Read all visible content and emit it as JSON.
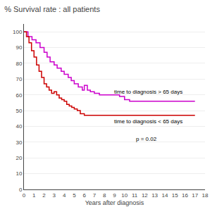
{
  "chart_data": {
    "type": "step",
    "title": "% Survival rate : all patients",
    "x_label": "Years after diagnosis",
    "xlim": [
      0,
      18
    ],
    "ylim": [
      0,
      105
    ],
    "xticks": [
      0,
      1,
      2,
      3,
      4,
      5,
      6,
      7,
      8,
      9,
      10,
      11,
      12,
      13,
      14,
      15,
      16,
      17,
      18
    ],
    "yticks": [
      0,
      10,
      20,
      30,
      40,
      50,
      60,
      70,
      80,
      90,
      100
    ],
    "grid": "y",
    "series": [
      {
        "color": "#cc00cc",
        "x": [
          0,
          0.4,
          0.8,
          1.2,
          1.6,
          2.0,
          2.3,
          2.6,
          3.0,
          3.3,
          3.7,
          4.0,
          4.4,
          4.7,
          5.0,
          5.4,
          5.8,
          6.0,
          6.3,
          6.6,
          7.0,
          7.5,
          8.5,
          9.5,
          10.0,
          10.5,
          11.0,
          17.0
        ],
        "values": [
          100,
          97,
          95,
          93,
          90,
          87,
          84,
          81,
          79,
          77,
          75,
          73,
          71,
          69,
          67,
          65,
          63,
          66,
          63,
          62,
          61,
          60,
          60,
          59,
          57,
          56,
          56,
          56
        ]
      },
      {
        "color": "#cc0000",
        "x": [
          0,
          0.25,
          0.5,
          0.75,
          1.0,
          1.25,
          1.5,
          1.75,
          2.0,
          2.25,
          2.5,
          2.75,
          3.0,
          3.25,
          3.5,
          3.75,
          4.0,
          4.25,
          4.5,
          4.75,
          5.0,
          5.3,
          5.6,
          6.0,
          6.3,
          6.7,
          7.0,
          17.0
        ],
        "values": [
          100,
          97,
          93,
          88,
          84,
          79,
          75,
          71,
          67,
          65,
          63,
          61,
          62,
          60,
          58,
          57,
          56,
          54,
          53,
          52,
          51,
          50,
          48,
          47,
          47,
          47,
          47,
          47
        ]
      }
    ],
    "annotations": [
      {
        "text": "time to diagnosis > 65 days",
        "x": 8.8,
        "y": 62
      },
      {
        "text": "time to diagnosis < 65 days",
        "x": 8.8,
        "y": 43
      },
      {
        "text": "p = 0.02",
        "x": 11.0,
        "y": 32
      }
    ]
  }
}
